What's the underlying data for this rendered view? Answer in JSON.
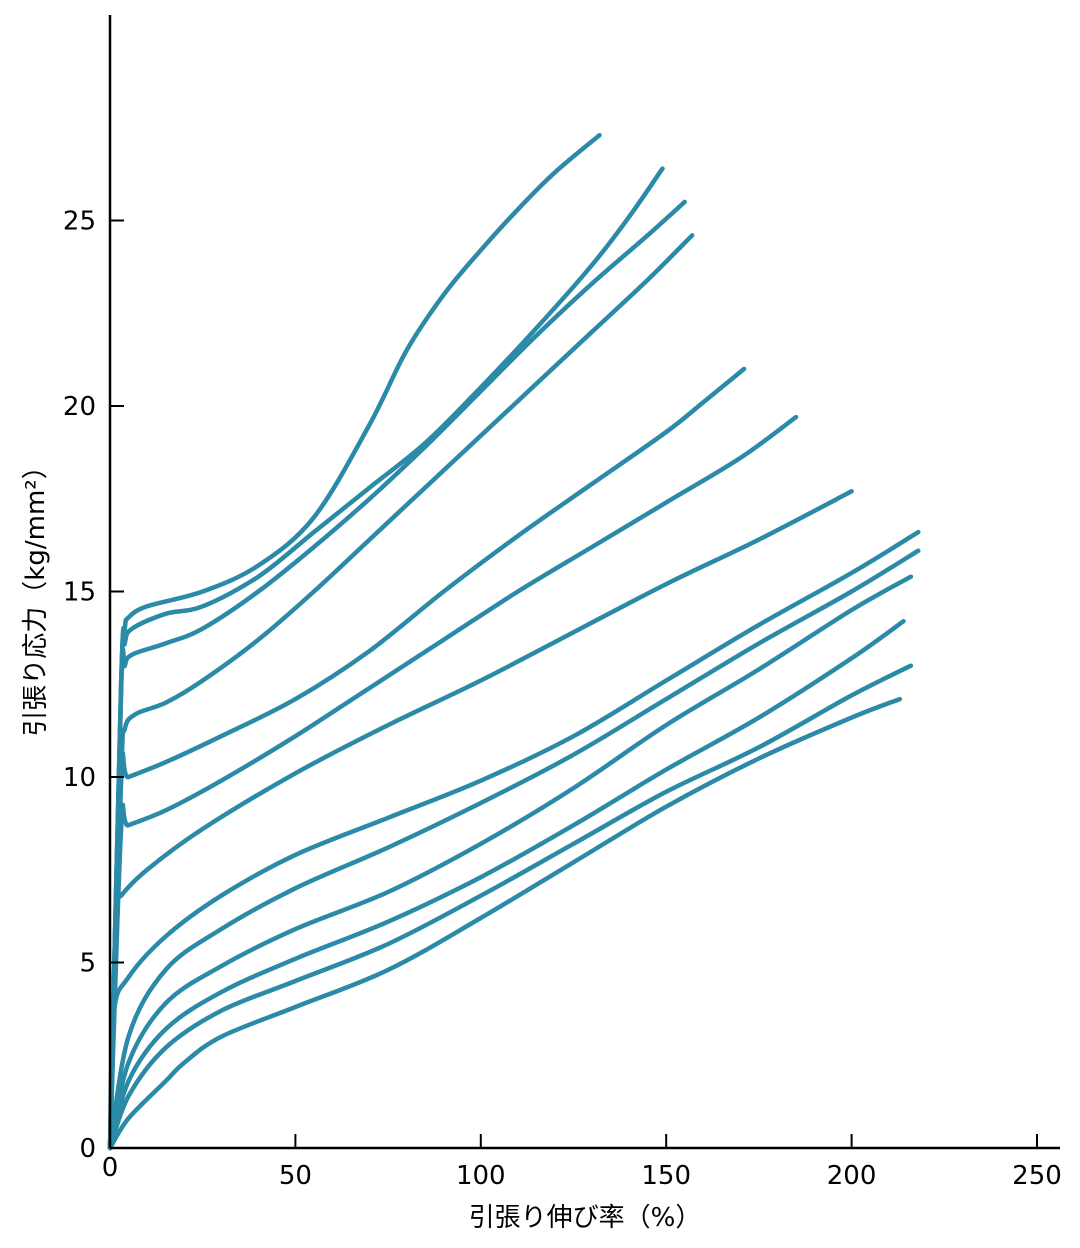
{
  "chart_data": {
    "type": "line",
    "title": "",
    "xlabel": "引張り伸び率（%）",
    "ylabel": "引張り応力（kg/mm²）",
    "xlim": [
      0,
      255
    ],
    "ylim": [
      0,
      30
    ],
    "xticks": [
      0,
      50,
      100,
      150,
      200,
      250
    ],
    "yticks": [
      0,
      5,
      10,
      15,
      20,
      25
    ],
    "xtick_labels": [
      "0",
      "50",
      "100",
      "150",
      "200",
      "250"
    ],
    "ytick_labels": [
      "0",
      "5",
      "10",
      "15",
      "20",
      "25"
    ],
    "grid": false,
    "legend": "none",
    "line_color": "#2b8aa8",
    "series": [
      {
        "x": [
          0,
          3,
          4,
          5,
          10,
          25,
          40,
          55,
          70,
          80,
          90,
          100,
          110,
          120,
          132
        ],
        "y": [
          0,
          12.5,
          14.0,
          14.3,
          14.6,
          15.0,
          15.7,
          17.0,
          19.5,
          21.5,
          23.0,
          24.2,
          25.3,
          26.3,
          27.3
        ]
      },
      {
        "x": [
          0,
          3,
          4,
          6,
          15,
          25,
          40,
          55,
          70,
          85,
          100,
          115,
          130,
          140,
          149
        ],
        "y": [
          0,
          12.5,
          13.6,
          14.0,
          14.4,
          14.6,
          15.4,
          16.6,
          17.8,
          19.0,
          20.5,
          22.1,
          23.8,
          25.1,
          26.4
        ]
      },
      {
        "x": [
          0,
          3,
          4,
          6,
          15,
          25,
          40,
          55,
          70,
          85,
          100,
          115,
          130,
          145,
          155
        ],
        "y": [
          0,
          12.3,
          13.0,
          13.3,
          13.6,
          14.0,
          15.0,
          16.2,
          17.5,
          18.9,
          20.4,
          21.9,
          23.3,
          24.6,
          25.5
        ]
      },
      {
        "x": [
          0,
          3,
          4,
          7,
          15,
          25,
          40,
          55,
          70,
          85,
          100,
          115,
          130,
          145,
          157
        ],
        "y": [
          0,
          10.0,
          11.3,
          11.7,
          12.0,
          12.6,
          13.7,
          15.0,
          16.4,
          17.8,
          19.2,
          20.6,
          22.0,
          23.4,
          24.6
        ]
      },
      {
        "x": [
          0,
          3,
          5,
          15,
          30,
          50,
          70,
          90,
          110,
          130,
          150,
          160,
          171
        ],
        "y": [
          0,
          9.9,
          10.0,
          10.4,
          11.1,
          12.1,
          13.4,
          15.0,
          16.5,
          17.9,
          19.3,
          20.1,
          21.0
        ]
      },
      {
        "x": [
          0,
          3,
          5,
          15,
          30,
          50,
          70,
          90,
          110,
          130,
          150,
          170,
          185
        ],
        "y": [
          0,
          8.6,
          8.7,
          9.1,
          9.9,
          11.1,
          12.4,
          13.7,
          15.0,
          16.2,
          17.4,
          18.6,
          19.7
        ]
      },
      {
        "x": [
          0,
          2,
          3,
          10,
          25,
          50,
          75,
          100,
          125,
          150,
          175,
          200
        ],
        "y": [
          0,
          6.5,
          6.8,
          7.5,
          8.6,
          10.1,
          11.4,
          12.6,
          13.9,
          15.2,
          16.4,
          17.7
        ]
      },
      {
        "x": [
          0,
          1,
          5,
          15,
          30,
          50,
          75,
          100,
          125,
          150,
          175,
          200,
          218
        ],
        "y": [
          0,
          3.6,
          4.6,
          5.7,
          6.8,
          7.9,
          8.9,
          9.9,
          11.1,
          12.6,
          14.1,
          15.5,
          16.6
        ]
      },
      {
        "x": [
          0,
          5,
          15,
          30,
          50,
          75,
          100,
          125,
          150,
          175,
          200,
          218
        ],
        "y": [
          0,
          3.0,
          4.8,
          5.9,
          7.0,
          8.1,
          9.3,
          10.6,
          12.1,
          13.6,
          15.0,
          16.1
        ]
      },
      {
        "x": [
          0,
          5,
          15,
          30,
          50,
          75,
          100,
          125,
          150,
          175,
          200,
          216
        ],
        "y": [
          0,
          2.3,
          3.9,
          4.9,
          5.9,
          6.9,
          8.2,
          9.7,
          11.4,
          12.9,
          14.5,
          15.4
        ]
      },
      {
        "x": [
          0,
          5,
          15,
          30,
          50,
          75,
          100,
          125,
          150,
          175,
          200,
          214
        ],
        "y": [
          0,
          1.8,
          3.2,
          4.2,
          5.1,
          6.1,
          7.3,
          8.7,
          10.2,
          11.6,
          13.2,
          14.2
        ]
      },
      {
        "x": [
          0,
          5,
          15,
          30,
          50,
          75,
          100,
          125,
          150,
          175,
          200,
          216
        ],
        "y": [
          0,
          1.4,
          2.7,
          3.7,
          4.5,
          5.5,
          6.8,
          8.2,
          9.6,
          10.8,
          12.2,
          13.0
        ]
      },
      {
        "x": [
          0,
          5,
          15,
          20,
          30,
          50,
          75,
          100,
          125,
          150,
          175,
          200,
          213
        ],
        "y": [
          0,
          0.8,
          1.8,
          2.3,
          3.0,
          3.8,
          4.8,
          6.2,
          7.7,
          9.2,
          10.5,
          11.6,
          12.1
        ]
      }
    ]
  }
}
